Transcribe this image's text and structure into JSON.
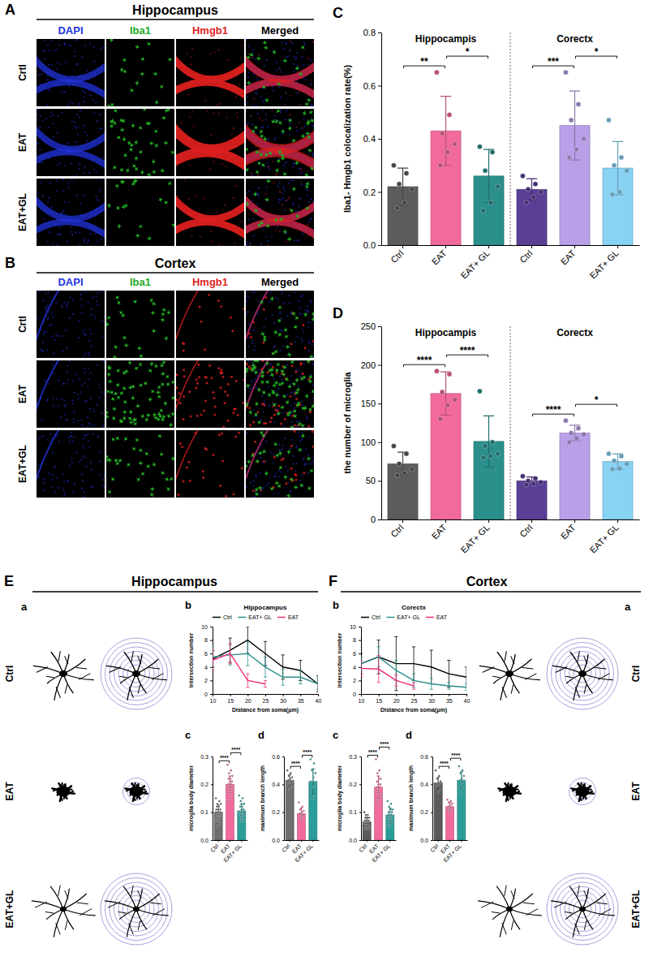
{
  "image_panels": [
    {
      "panel": "A",
      "title": "Hippocampus",
      "channels": [
        {
          "label": "DAPI",
          "color": "#2233dd"
        },
        {
          "label": "Iba1",
          "color": "#22aa22"
        },
        {
          "label": "Hmgb1",
          "color": "#dd1f1f"
        },
        {
          "label": "Merged",
          "color": "#000000"
        }
      ],
      "rows": [
        "Crtl",
        "EAT",
        "EAT+GL"
      ]
    },
    {
      "panel": "B",
      "title": "Cortex",
      "channels": [
        {
          "label": "DAPI",
          "color": "#2233dd"
        },
        {
          "label": "Iba1",
          "color": "#22aa22"
        },
        {
          "label": "Hmgb1",
          "color": "#dd1f1f"
        },
        {
          "label": "Merged",
          "color": "#000000"
        }
      ],
      "rows": [
        "Crtl",
        "EAT",
        "EAT+GL"
      ]
    }
  ],
  "morphology_panels": [
    {
      "panel": "E",
      "title": "Hippocampus",
      "sub_panel": "a",
      "rows": [
        "Ctrl",
        "EAT",
        "EAT+GL"
      ]
    },
    {
      "panel": "F",
      "title": "Cortex",
      "sub_panel": "a",
      "rows": [
        "Ctrl",
        "EAT",
        "EAT+GL"
      ]
    }
  ],
  "chart_data": [
    {
      "type": "bar",
      "panel": "C",
      "ylabel": "Iba1- Hmgb1 colocalization rate(%)",
      "ylim": [
        0,
        0.8
      ],
      "yticks": [
        {
          "value": 0,
          "label": "0.0"
        },
        0.2,
        0.4,
        0.6,
        0.8
      ],
      "groups": [
        {
          "label": "Hippocampis",
          "categories": [
            "Ctrl",
            "EAT",
            "EAT+ GL"
          ],
          "colors": [
            "#5c5c5c",
            "#f26a9c",
            "#2b8f8c"
          ],
          "values": [
            0.22,
            0.43,
            0.26
          ],
          "errors": [
            0.07,
            0.13,
            0.1
          ],
          "points": [
            [
              0.3,
              0.27,
              0.23,
              0.21,
              0.16,
              0.14
            ],
            [
              0.65,
              0.49,
              0.42,
              0.38,
              0.35,
              0.3
            ],
            [
              0.37,
              0.35,
              0.28,
              0.22,
              0.16,
              0.13
            ]
          ],
          "significance": [
            {
              "pair": [
                0,
                1
              ],
              "label": "**"
            },
            {
              "pair": [
                1,
                2
              ],
              "label": "*"
            }
          ]
        },
        {
          "label": "Corectx",
          "categories": [
            "Ctrl",
            "EAT",
            "EAT+ GL"
          ],
          "colors": [
            "#5b3f96",
            "#b99fe8",
            "#88d2f3"
          ],
          "values": [
            0.21,
            0.45,
            0.29
          ],
          "errors": [
            0.04,
            0.13,
            0.1
          ],
          "points": [
            [
              0.26,
              0.23,
              0.21,
              0.2,
              0.18,
              0.16
            ],
            [
              0.65,
              0.53,
              0.47,
              0.4,
              0.36,
              0.33
            ],
            [
              0.47,
              0.33,
              0.3,
              0.28,
              0.2,
              0.19
            ]
          ],
          "significance": [
            {
              "pair": [
                0,
                1
              ],
              "label": "***"
            },
            {
              "pair": [
                1,
                2
              ],
              "label": "*"
            }
          ]
        }
      ]
    },
    {
      "type": "bar",
      "panel": "D",
      "ylabel": "the number of microglia",
      "ylim": [
        0,
        250
      ],
      "yticks": [
        0,
        50,
        100,
        150,
        200,
        250
      ],
      "groups": [
        {
          "label": "Hippocampis",
          "categories": [
            "Ctrl",
            "EAT",
            "EAT+ GL"
          ],
          "colors": [
            "#5c5c5c",
            "#f26a9c",
            "#2b8f8c"
          ],
          "values": [
            72,
            163,
            101
          ],
          "errors": [
            15,
            28,
            33
          ],
          "points": [
            [
              95,
              85,
              72,
              65,
              60,
              57
            ],
            [
              192,
              188,
              165,
              155,
              148,
              130
            ],
            [
              166,
              100,
              95,
              85,
              82,
              80
            ]
          ],
          "significance": [
            {
              "pair": [
                0,
                1
              ],
              "label": "****"
            },
            {
              "pair": [
                1,
                2
              ],
              "label": "****"
            }
          ]
        },
        {
          "label": "Corectx",
          "categories": [
            "Ctrl",
            "EAT",
            "EAT+ GL"
          ],
          "colors": [
            "#5b3f96",
            "#b99fe8",
            "#88d2f3"
          ],
          "values": [
            50,
            112,
            75
          ],
          "errors": [
            5,
            10,
            10
          ],
          "points": [
            [
              56,
              53,
              50,
              48,
              46,
              45
            ],
            [
              128,
              118,
              112,
              110,
              105,
              100
            ],
            [
              85,
              82,
              76,
              72,
              66,
              65
            ]
          ],
          "significance": [
            {
              "pair": [
                0,
                1
              ],
              "label": "****"
            },
            {
              "pair": [
                1,
                2
              ],
              "label": "*"
            }
          ]
        }
      ]
    },
    {
      "type": "line",
      "panel": "b",
      "title": "Hippocampus",
      "xlabel": "Distance from soma(μm)",
      "ylabel": "intersection number",
      "x": [
        10,
        15,
        20,
        25,
        30,
        35,
        40
      ],
      "xlim": [
        10,
        40
      ],
      "xticks": [
        10,
        15,
        20,
        25,
        30,
        35,
        40
      ],
      "ylim": [
        0,
        10
      ],
      "yticks": [
        0,
        2,
        4,
        6,
        8,
        10
      ],
      "legend": "top",
      "series": [
        {
          "name": "Ctrl",
          "color": "#000000",
          "values": [
            5.2,
            6.5,
            8.0,
            6.0,
            4.0,
            3.5,
            1.5
          ],
          "errors": [
            1.2,
            1.8,
            2.0,
            1.8,
            1.8,
            1.5,
            1.2
          ]
        },
        {
          "name": "EAT+ GL",
          "color": "#2b8f8c",
          "values": [
            5.5,
            5.8,
            6.0,
            4.0,
            2.5,
            2.5,
            1.5
          ],
          "errors": [
            1.5,
            1.5,
            1.8,
            1.5,
            1.2,
            1.0,
            0.8
          ]
        },
        {
          "name": "EAT",
          "color": "#f0307a",
          "values": [
            5.0,
            6.0,
            2.0,
            1.5,
            null,
            null,
            null
          ],
          "errors": [
            1.5,
            1.5,
            1.0,
            0.5,
            null,
            null,
            null
          ]
        }
      ]
    },
    {
      "type": "bar",
      "panel": "c",
      "ylabel": "microglia body diameter",
      "ylim": [
        0,
        0.3
      ],
      "yticks": [
        {
          "value": 0,
          "label": "0.0"
        },
        0.1,
        0.2,
        0.3
      ],
      "groups": [
        {
          "categories": [
            "Ctrl",
            "EAT",
            "EAT+ GL"
          ],
          "colors": [
            "#6e6e6e",
            "#f26a9c",
            "#2b9d99"
          ],
          "values": [
            0.1,
            0.2,
            0.105
          ],
          "errors": [
            0.025,
            0.03,
            0.025
          ],
          "points": [
            [
              0.15,
              0.14,
              0.13,
              0.13,
              0.12,
              0.12,
              0.11,
              0.11,
              0.11,
              0.1,
              0.1,
              0.1,
              0.09,
              0.09,
              0.09,
              0.08,
              0.08,
              0.08,
              0.07,
              0.07,
              0.06,
              0.05
            ],
            [
              0.27,
              0.25,
              0.24,
              0.23,
              0.22,
              0.22,
              0.21,
              0.21,
              0.2,
              0.2,
              0.2,
              0.19,
              0.19,
              0.18,
              0.18,
              0.17,
              0.17,
              0.16,
              0.15,
              0.14
            ],
            [
              0.16,
              0.15,
              0.14,
              0.13,
              0.12,
              0.12,
              0.11,
              0.11,
              0.1,
              0.1,
              0.1,
              0.1,
              0.09,
              0.09,
              0.09,
              0.08,
              0.08,
              0.07,
              0.07,
              0.06
            ]
          ],
          "significance": [
            {
              "pair": [
                0,
                1
              ],
              "label": "****"
            },
            {
              "pair": [
                1,
                2
              ],
              "label": "****"
            }
          ]
        }
      ]
    },
    {
      "type": "bar",
      "panel": "d",
      "ylabel": "maximum branch length",
      "ylim": [
        0,
        0.6
      ],
      "yticks": [
        {
          "value": 0,
          "label": "0.0"
        },
        0.2,
        0.4,
        0.6
      ],
      "groups": [
        {
          "categories": [
            "Ctrl",
            "EAT",
            "EAT+ GL"
          ],
          "colors": [
            "#6e6e6e",
            "#f26a9c",
            "#2b9d99"
          ],
          "values": [
            0.43,
            0.19,
            0.42
          ],
          "errors": [
            0.04,
            0.04,
            0.09
          ],
          "points": [
            [
              0.5,
              0.48,
              0.46,
              0.45,
              0.44,
              0.43,
              0.42,
              0.41,
              0.4,
              0.38,
              0.36
            ],
            [
              0.27,
              0.24,
              0.22,
              0.21,
              0.2,
              0.19,
              0.18,
              0.17,
              0.16,
              0.15,
              0.15
            ],
            [
              0.58,
              0.55,
              0.5,
              0.48,
              0.45,
              0.42,
              0.4,
              0.38,
              0.35,
              0.32,
              0.3
            ]
          ],
          "significance": [
            {
              "pair": [
                0,
                1
              ],
              "label": "****"
            },
            {
              "pair": [
                1,
                2
              ],
              "label": "****"
            }
          ]
        }
      ]
    },
    {
      "type": "line",
      "panel": "b",
      "title": "Corectx",
      "xlabel": "Distance from soma(μm)",
      "ylabel": "intersection number",
      "x": [
        10,
        15,
        20,
        25,
        30,
        35,
        40
      ],
      "xlim": [
        10,
        40
      ],
      "xticks": [
        10,
        15,
        20,
        25,
        30,
        35,
        40
      ],
      "ylim": [
        0,
        10
      ],
      "yticks": [
        0,
        2,
        4,
        6,
        8,
        10
      ],
      "legend": "top",
      "series": [
        {
          "name": "Ctrl",
          "color": "#000000",
          "values": [
            4.5,
            5.5,
            4.5,
            4.5,
            4.0,
            3.0,
            2.5
          ],
          "errors": [
            1.5,
            2.5,
            4.0,
            2.5,
            2.5,
            2.0,
            1.5
          ]
        },
        {
          "name": "EAT+ GL",
          "color": "#2b8f8c",
          "values": [
            4.5,
            5.5,
            3.5,
            2.0,
            1.5,
            1.2,
            1.0
          ],
          "errors": [
            1.0,
            1.5,
            1.5,
            1.0,
            0.8,
            0.5,
            0.5
          ]
        },
        {
          "name": "EAT",
          "color": "#f0307a",
          "values": [
            3.8,
            3.7,
            2.0,
            1.2,
            null,
            null,
            null
          ],
          "errors": [
            1.2,
            2.0,
            0.8,
            0.5,
            null,
            null,
            null
          ]
        }
      ]
    },
    {
      "type": "bar",
      "panel": "c",
      "ylabel": "microglia body diameter",
      "ylim": [
        0,
        0.3
      ],
      "yticks": [
        {
          "value": 0,
          "label": "0.0"
        },
        0.1,
        0.2,
        0.3
      ],
      "groups": [
        {
          "categories": [
            "Ctrl",
            "EAT",
            "EAT+ GL"
          ],
          "colors": [
            "#5a5a5a",
            "#f26a9c",
            "#2b9d99"
          ],
          "values": [
            0.065,
            0.19,
            0.09
          ],
          "errors": [
            0.017,
            0.04,
            0.025
          ],
          "points": [
            [
              0.1,
              0.09,
              0.09,
              0.08,
              0.08,
              0.08,
              0.07,
              0.07,
              0.07,
              0.07,
              0.06,
              0.06,
              0.06,
              0.06,
              0.05,
              0.05,
              0.05,
              0.04,
              0.04,
              0.04
            ],
            [
              0.29,
              0.25,
              0.24,
              0.22,
              0.22,
              0.21,
              0.2,
              0.2,
              0.19,
              0.19,
              0.18,
              0.18,
              0.17,
              0.17,
              0.16,
              0.16,
              0.15,
              0.15,
              0.14,
              0.13,
              0.12
            ],
            [
              0.14,
              0.13,
              0.12,
              0.11,
              0.11,
              0.1,
              0.1,
              0.09,
              0.09,
              0.09,
              0.08,
              0.08,
              0.08,
              0.07,
              0.07,
              0.07,
              0.06,
              0.06,
              0.05,
              0.05
            ]
          ],
          "significance": [
            {
              "pair": [
                0,
                1
              ],
              "label": "****"
            },
            {
              "pair": [
                1,
                2
              ],
              "label": "****"
            }
          ]
        }
      ]
    },
    {
      "type": "bar",
      "panel": "d",
      "ylabel": "maximum branch length",
      "ylim": [
        0,
        0.6
      ],
      "yticks": [
        {
          "value": 0,
          "label": "0.0"
        },
        0.2,
        0.4,
        0.6
      ],
      "groups": [
        {
          "categories": [
            "Ctrl",
            "EAT",
            "EAT+ GL"
          ],
          "colors": [
            "#5a5a5a",
            "#f26a9c",
            "#2b9d99"
          ],
          "values": [
            0.41,
            0.24,
            0.43
          ],
          "errors": [
            0.04,
            0.03,
            0.06
          ],
          "points": [
            [
              0.5,
              0.46,
              0.44,
              0.42,
              0.41,
              0.4,
              0.4,
              0.39,
              0.38,
              0.36,
              0.34
            ],
            [
              0.29,
              0.28,
              0.27,
              0.26,
              0.25,
              0.24,
              0.23,
              0.22,
              0.22,
              0.21,
              0.2
            ],
            [
              0.53,
              0.5,
              0.48,
              0.46,
              0.44,
              0.43,
              0.42,
              0.4,
              0.38,
              0.37,
              0.34
            ]
          ],
          "significance": [
            {
              "pair": [
                0,
                1
              ],
              "label": "****"
            },
            {
              "pair": [
                1,
                2
              ],
              "label": "****"
            }
          ]
        }
      ]
    }
  ]
}
